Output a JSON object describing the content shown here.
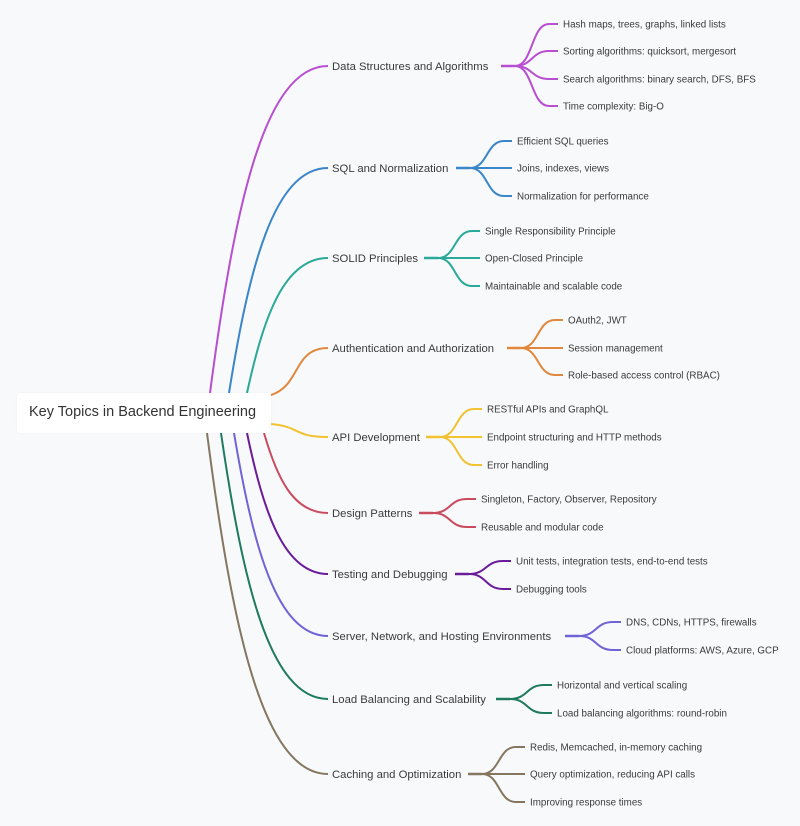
{
  "root": {
    "label": "Key Topics in Backend Engineering"
  },
  "branches": [
    {
      "label": "Data Structures and Algorithms",
      "color": "#b84fd0",
      "children": [
        "Hash maps, trees, graphs, linked lists",
        "Sorting algorithms: quicksort, mergesort",
        "Search algorithms: binary search, DFS, BFS",
        "Time complexity: Big-O"
      ]
    },
    {
      "label": "SQL and Normalization",
      "color": "#3a86c8",
      "children": [
        "Efficient SQL queries",
        "Joins, indexes, views",
        "Normalization for performance"
      ]
    },
    {
      "label": "SOLID Principles",
      "color": "#2aa898",
      "children": [
        "Single Responsibility Principle",
        "Open-Closed Principle",
        "Maintainable and scalable code"
      ]
    },
    {
      "label": "Authentication and Authorization",
      "color": "#e0883e",
      "children": [
        "OAuth2, JWT",
        "Session management",
        "Role-based access control (RBAC)"
      ]
    },
    {
      "label": "API Development",
      "color": "#f2c232",
      "children": [
        "RESTful APIs and GraphQL",
        "Endpoint structuring and HTTP methods",
        "Error handling"
      ]
    },
    {
      "label": "Design Patterns",
      "color": "#c94b5e",
      "children": [
        "Singleton, Factory, Observer, Repository",
        "Reusable and modular code"
      ]
    },
    {
      "label": "Testing and Debugging",
      "color": "#6a1b9a",
      "children": [
        "Unit tests, integration tests, end-to-end tests",
        "Debugging tools"
      ]
    },
    {
      "label": "Server, Network, and Hosting Environments",
      "color": "#6f63d6",
      "children": [
        "DNS, CDNs, HTTPS, firewalls",
        "Cloud platforms: AWS, Azure, GCP"
      ]
    },
    {
      "label": "Load Balancing and Scalability",
      "color": "#1f7a5e",
      "children": [
        "Horizontal and vertical scaling",
        "Load balancing algorithms: round-robin"
      ]
    },
    {
      "label": "Caching and Optimization",
      "color": "#85765f",
      "children": [
        "Redis, Memcached, in-memory caching",
        "Query optimization, reducing API calls",
        "Improving response times"
      ]
    }
  ]
}
